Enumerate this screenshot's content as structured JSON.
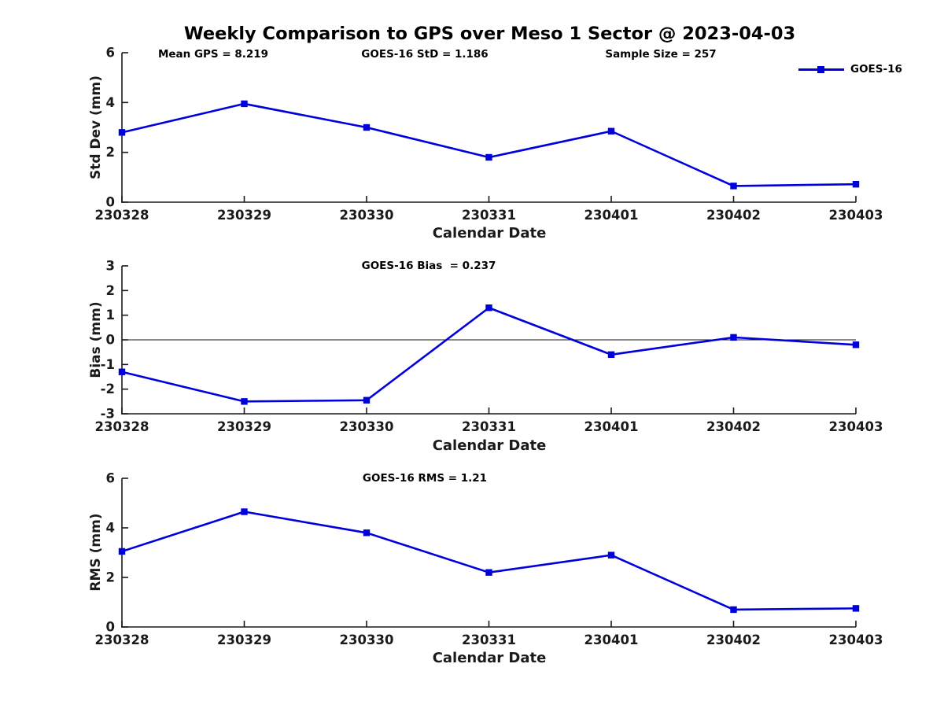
{
  "figure": {
    "title": "Weekly Comparison to GPS over Meso 1 Sector @ 2023-04-03",
    "accent_color": "#0000DD",
    "axis_color": "#1a1a1a",
    "background_color": "#ffffff"
  },
  "chart_data": [
    {
      "type": "line",
      "title": "",
      "categories": [
        "230328",
        "230329",
        "230330",
        "230331",
        "230401",
        "230402",
        "230403"
      ],
      "series": [
        {
          "name": "GOES-16",
          "values": [
            2.8,
            3.95,
            3.0,
            1.8,
            2.85,
            0.65,
            0.72
          ]
        }
      ],
      "ylabel": "Std Dev (mm)",
      "xlabel": "Calendar Date",
      "ylim": [
        0,
        6
      ],
      "yticks": [
        0,
        2,
        4,
        6
      ],
      "grid": false,
      "annotations": [
        "Mean GPS = 8.219",
        "GOES-16 StD = 1.186",
        "Sample Size = 257"
      ],
      "legend": {
        "label": "GOES-16",
        "position": "top-right",
        "marker": "square"
      }
    },
    {
      "type": "line",
      "title": "GOES-16 Bias  = 0.237",
      "categories": [
        "230328",
        "230329",
        "230330",
        "230331",
        "230401",
        "230402",
        "230403"
      ],
      "series": [
        {
          "name": "GOES-16",
          "values": [
            -1.3,
            -2.5,
            -2.45,
            1.3,
            -0.6,
            0.1,
            -0.2
          ]
        }
      ],
      "ylabel": "Bias (mm)",
      "xlabel": "Calendar Date",
      "ylim": [
        -3,
        3
      ],
      "yticks": [
        3,
        2,
        1,
        0,
        -1,
        -2,
        -3
      ],
      "grid": false,
      "zero_line": true
    },
    {
      "type": "line",
      "title": "GOES-16 RMS = 1.21",
      "categories": [
        "230328",
        "230329",
        "230330",
        "230331",
        "230401",
        "230402",
        "230403"
      ],
      "series": [
        {
          "name": "GOES-16",
          "values": [
            3.05,
            4.65,
            3.8,
            2.2,
            2.9,
            0.7,
            0.75
          ]
        }
      ],
      "ylabel": "RMS (mm)",
      "xlabel": "Calendar Date",
      "ylim": [
        0,
        6
      ],
      "yticks": [
        0,
        2,
        4,
        6
      ],
      "grid": false
    }
  ]
}
